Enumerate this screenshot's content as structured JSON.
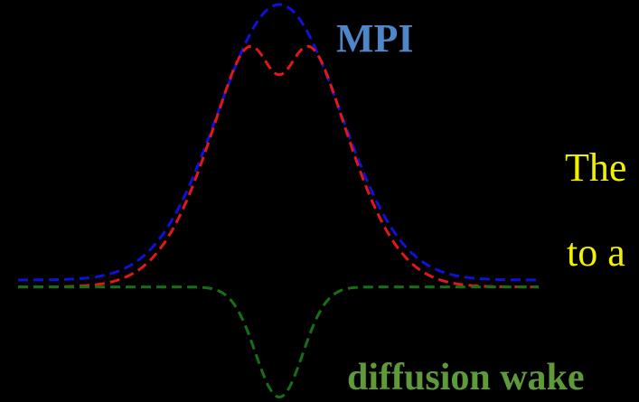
{
  "labels": {
    "mpi": "MPI",
    "diffusion_wake": "diffusion wake",
    "text_line_1": "The",
    "text_line_2": "to a"
  },
  "colors": {
    "background": "#000000",
    "mpi_curve": "#1010d8",
    "combined_curve": "#e01818",
    "wake_curve": "#157015",
    "mpi_label": "#4f86c8",
    "wake_label": "#5f9a3a",
    "body_text": "#f0f000"
  },
  "curves": [
    {
      "name": "mpi",
      "color_key": "mpi_curve",
      "shape": "gaussian",
      "amplitude": 1.0,
      "baseline": 0.0
    },
    {
      "name": "combined",
      "color_key": "combined_curve",
      "shape": "gaussian-with-dip",
      "amplitude": 0.77,
      "baseline": -0.025
    },
    {
      "name": "diffusion-wake",
      "color_key": "wake_curve",
      "shape": "inverted-gaussian",
      "amplitude": 0.4,
      "baseline": -0.025
    }
  ]
}
